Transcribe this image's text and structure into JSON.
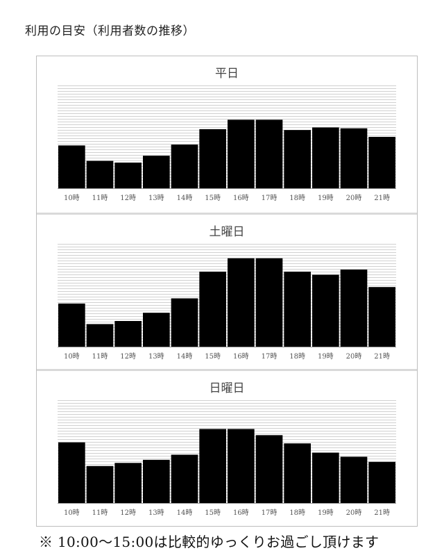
{
  "page": {
    "title": "利用の目安（利用者数の推移）",
    "footnote": "※ 10:00〜15:00は比較的ゆっくりお過ごし頂けます"
  },
  "colors": {
    "bar": "#000000",
    "grid": "#d0d0d0",
    "baseline": "#9a9a9a"
  },
  "chart_data": [
    {
      "type": "bar",
      "title": "平日",
      "categories": [
        "10時",
        "11時",
        "12時",
        "13時",
        "14時",
        "15時",
        "16時",
        "17時",
        "18時",
        "19時",
        "20時",
        "21時"
      ],
      "values": [
        50,
        32,
        30,
        38,
        51,
        69,
        80,
        80,
        68,
        71,
        70,
        60
      ],
      "ylim": [
        0,
        120
      ],
      "grid": true,
      "xlabel": "",
      "ylabel": ""
    },
    {
      "type": "bar",
      "title": "土曜日",
      "categories": [
        "10時",
        "11時",
        "12時",
        "13時",
        "14時",
        "15時",
        "16時",
        "17時",
        "18時",
        "19時",
        "20時",
        "21時"
      ],
      "values": [
        42,
        22,
        25,
        33,
        47,
        73,
        86,
        86,
        73,
        70,
        75,
        58
      ],
      "ylim": [
        0,
        100
      ],
      "grid": true,
      "xlabel": "",
      "ylabel": ""
    },
    {
      "type": "bar",
      "title": "日曜日",
      "categories": [
        "10時",
        "11時",
        "12時",
        "13時",
        "14時",
        "15時",
        "16時",
        "17時",
        "18時",
        "19時",
        "20時",
        "21時"
      ],
      "values": [
        59,
        36,
        39,
        42,
        47,
        72,
        72,
        66,
        58,
        49,
        45,
        40
      ],
      "ylim": [
        0,
        100
      ],
      "grid": true,
      "xlabel": "",
      "ylabel": ""
    }
  ]
}
